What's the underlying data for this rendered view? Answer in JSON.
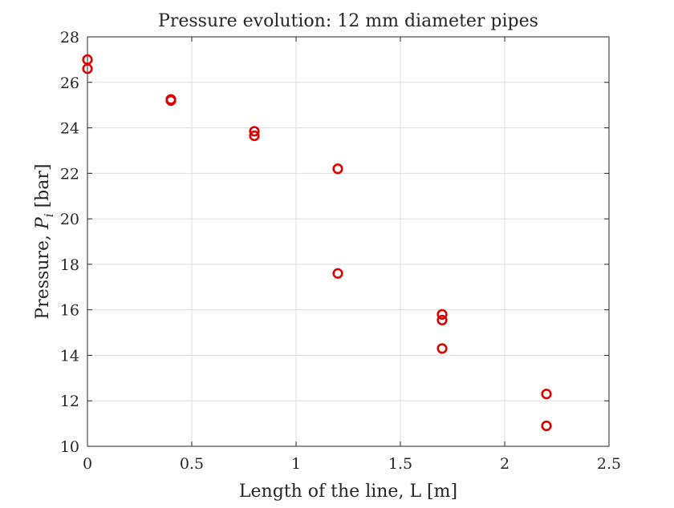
{
  "chart_data": {
    "type": "scatter",
    "title": "Pressure evolution: 12 mm diameter pipes",
    "xlabel": "Length of the line, L [m]",
    "ylabel_prefix": "Pressure, ",
    "ylabel_symbol": "P",
    "ylabel_subscript": "i",
    "ylabel_suffix": " [bar]",
    "xlim": [
      0,
      2.5
    ],
    "ylim": [
      10,
      28
    ],
    "x_ticks": [
      "0",
      "0.5",
      "1",
      "1.5",
      "2",
      "2.5"
    ],
    "y_ticks": [
      "10",
      "12",
      "14",
      "16",
      "18",
      "20",
      "22",
      "24",
      "26",
      "28"
    ],
    "grid": true,
    "marker": "circle-open",
    "marker_color": "#e00000",
    "series": [
      {
        "x": [
          0,
          0,
          0.4,
          0.4,
          0.8,
          0.8,
          1.2,
          1.2,
          1.7,
          1.7,
          1.7,
          2.2,
          2.2
        ],
        "y": [
          27.0,
          26.6,
          25.25,
          25.2,
          23.85,
          23.65,
          22.2,
          17.6,
          15.8,
          15.55,
          14.3,
          12.3,
          10.9
        ]
      }
    ]
  }
}
